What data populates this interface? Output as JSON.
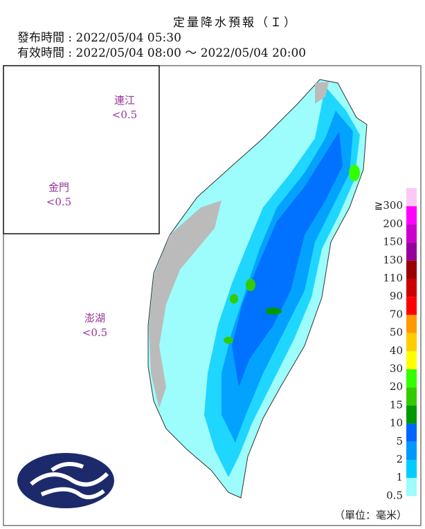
{
  "header": {
    "title": "定量降水預報（Ｉ）",
    "issued": "發布時間 : 2022/05/04 05:30",
    "valid": "有效時間 : 2022/05/04 08:00 ～ 2022/05/04 20:00"
  },
  "map": {
    "insets": [
      {
        "name": "連江",
        "amount": "<0.5"
      },
      {
        "name": "金門",
        "amount": "<0.5"
      },
      {
        "name": "澎湖",
        "amount": "<0.5"
      }
    ]
  },
  "legend": {
    "unit": "（單位：毫米）",
    "items": [
      {
        "label": "≧300",
        "color": "#fcc8f6"
      },
      {
        "label": "200",
        "color": "#ff00ff"
      },
      {
        "label": "150",
        "color": "#cc00cc"
      },
      {
        "label": "130",
        "color": "#990099"
      },
      {
        "label": "110",
        "color": "#990000"
      },
      {
        "label": "90",
        "color": "#cc0000"
      },
      {
        "label": "70",
        "color": "#ff0000"
      },
      {
        "label": "50",
        "color": "#ff9900"
      },
      {
        "label": "40",
        "color": "#ffcc00"
      },
      {
        "label": "30",
        "color": "#ffff00"
      },
      {
        "label": "20",
        "color": "#33ff00"
      },
      {
        "label": "15",
        "color": "#33cc00"
      },
      {
        "label": "10",
        "color": "#009900"
      },
      {
        "label": "5",
        "color": "#0066ff"
      },
      {
        "label": "2",
        "color": "#0099ff"
      },
      {
        "label": "1",
        "color": "#00ccff"
      },
      {
        "label": "0.5",
        "color": "#9dfcfc"
      }
    ]
  }
}
